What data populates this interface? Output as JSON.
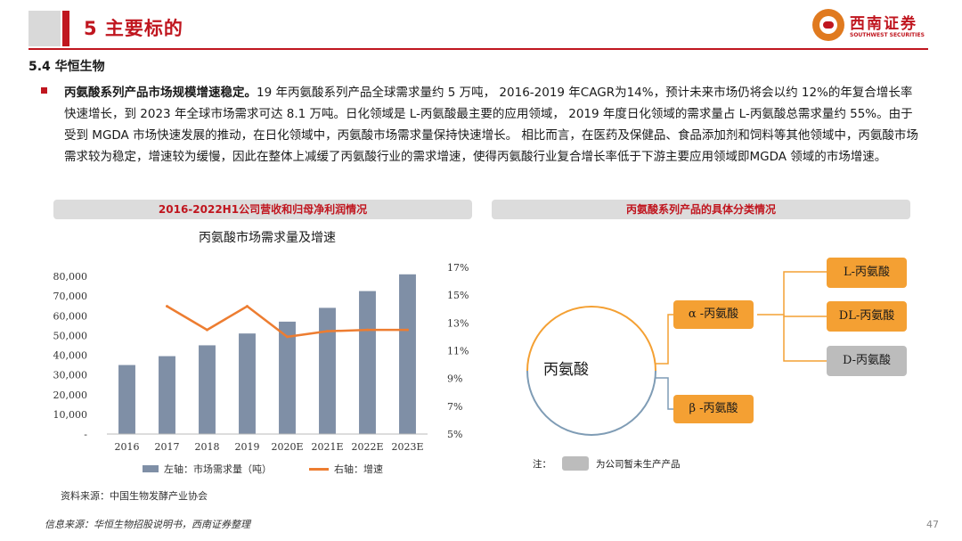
{
  "header": {
    "title": "5 主要标的",
    "logo_cn": "西南证券",
    "logo_en": "SOUTHWEST SECURITIES"
  },
  "section": "5.4 华恒生物",
  "paragraph": {
    "lead": "丙氨酸系列产品市场规模增速稳定。",
    "body": "19 年丙氨酸系列产品全球需求量约 5 万吨， 2016-2019 年CAGR为14%，预计未来市场仍将会以约 12%的年复合增长率快速增长，到 2023 年全球市场需求可达 8.1 万吨。日化领域是 L-丙氨酸最主要的应用领域， 2019 年度日化领域的需求量占 L-丙氨酸总需求量约 55%。由于受到 MGDA 市场快速发展的推动，在日化领域中，丙氨酸市场需求量保持快速增长。 相比而言，在医药及保健品、食品添加剂和饲料等其他领域中，丙氨酸市场需求较为稳定，增速较为缓慢，因此在整体上减缓了丙氨酸行业的需求增速，使得丙氨酸行业复合增长率低于下游主要应用领域即MGDA 领域的市场增速。"
  },
  "panel_left_title": "2016-2022H1公司营收和归母净利润情况",
  "panel_right_title": "丙氨酸系列产品的具体分类情况",
  "chart_data": {
    "type": "bar",
    "title": "丙氨酸市场需求量及增速",
    "categories": [
      "2016",
      "2017",
      "2018",
      "2019",
      "2020E",
      "2021E",
      "2022E",
      "2023E"
    ],
    "series": [
      {
        "name": "左轴：市场需求量（吨）",
        "type": "bar",
        "axis": "left",
        "values": [
          35000,
          39500,
          45000,
          51000,
          57000,
          64000,
          72500,
          81000
        ]
      },
      {
        "name": "右轴：增速",
        "type": "line",
        "axis": "right",
        "values": [
          null,
          14.2,
          12.5,
          14.2,
          12.0,
          12.4,
          12.5,
          12.5
        ]
      }
    ],
    "left_axis": {
      "ylim": [
        0,
        80000
      ],
      "ticks": [
        "-",
        "10,000",
        "20,000",
        "30,000",
        "40,000",
        "50,000",
        "60,000",
        "70,000",
        "80,000"
      ]
    },
    "right_axis": {
      "ylim": [
        5,
        17
      ],
      "ticks": [
        "5%",
        "7%",
        "9%",
        "11%",
        "13%",
        "15%",
        "17%"
      ]
    },
    "bar_color": "#7f8fa6",
    "line_color": "#ed7d31",
    "legend_placement": "bottom"
  },
  "chart_source": "资料来源：中国生物发酵产业协会",
  "diagram": {
    "root": "丙氨酸",
    "alpha": "α -丙氨酸",
    "beta": "β -丙氨酸",
    "l": "L-丙氨酸",
    "dl": "DL-丙氨酸",
    "d": "D-丙氨酸",
    "note_prefix": "注：",
    "note_text": "为公司暂未生产产品",
    "orange": "#f4a033",
    "gray": "#bcbcbc",
    "line_color": "#7f9cb5"
  },
  "footer": "信息来源：华恒生物招股说明书，西南证券整理",
  "page_number": "47"
}
